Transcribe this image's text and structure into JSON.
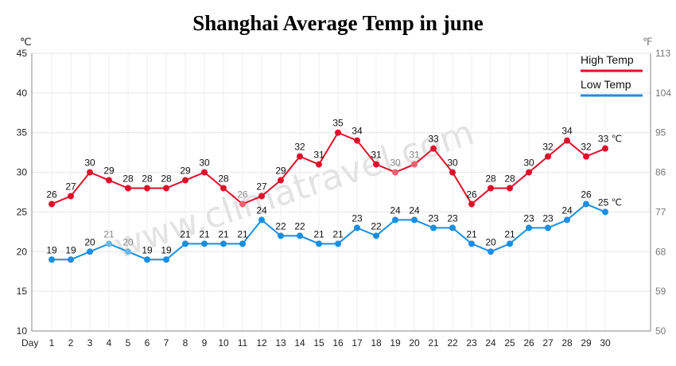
{
  "chart_data": {
    "type": "line",
    "title": "Shanghai Average Temp in june",
    "xlabel": "Day",
    "left_unit": "℃",
    "right_unit": "℉",
    "watermark": "www.climatravel.com",
    "ylim": [
      10,
      45
    ],
    "yticks": [
      10,
      15,
      20,
      25,
      30,
      35,
      40,
      45
    ],
    "y2ticks": [
      50,
      59,
      68,
      77,
      86,
      95,
      104,
      113
    ],
    "grid": true,
    "legend_position": "top-right",
    "x": [
      1,
      2,
      3,
      4,
      5,
      6,
      7,
      8,
      9,
      10,
      11,
      12,
      13,
      14,
      15,
      16,
      17,
      18,
      19,
      20,
      21,
      22,
      23,
      24,
      25,
      26,
      27,
      28,
      29,
      30
    ],
    "end_label_suffix": "℃",
    "series": [
      {
        "name": "High Temp",
        "color": "#e0102a",
        "light_color": "#f06070",
        "values": [
          26,
          27,
          30,
          29,
          28,
          28,
          28,
          29,
          30,
          28,
          26,
          27,
          29,
          32,
          31,
          35,
          34,
          31,
          30,
          31,
          33,
          30,
          26,
          28,
          28,
          30,
          32,
          34,
          32,
          33
        ],
        "light_points": [
          11,
          19,
          20
        ]
      },
      {
        "name": "Low Temp",
        "color": "#1a8ee0",
        "light_color": "#6ab8ee",
        "values": [
          19,
          19,
          20,
          21,
          20,
          19,
          19,
          21,
          21,
          21,
          21,
          24,
          22,
          22,
          21,
          21,
          23,
          22,
          24,
          24,
          23,
          23,
          21,
          20,
          21,
          23,
          23,
          24,
          26,
          25
        ],
        "light_points": [
          4,
          5
        ]
      }
    ]
  }
}
